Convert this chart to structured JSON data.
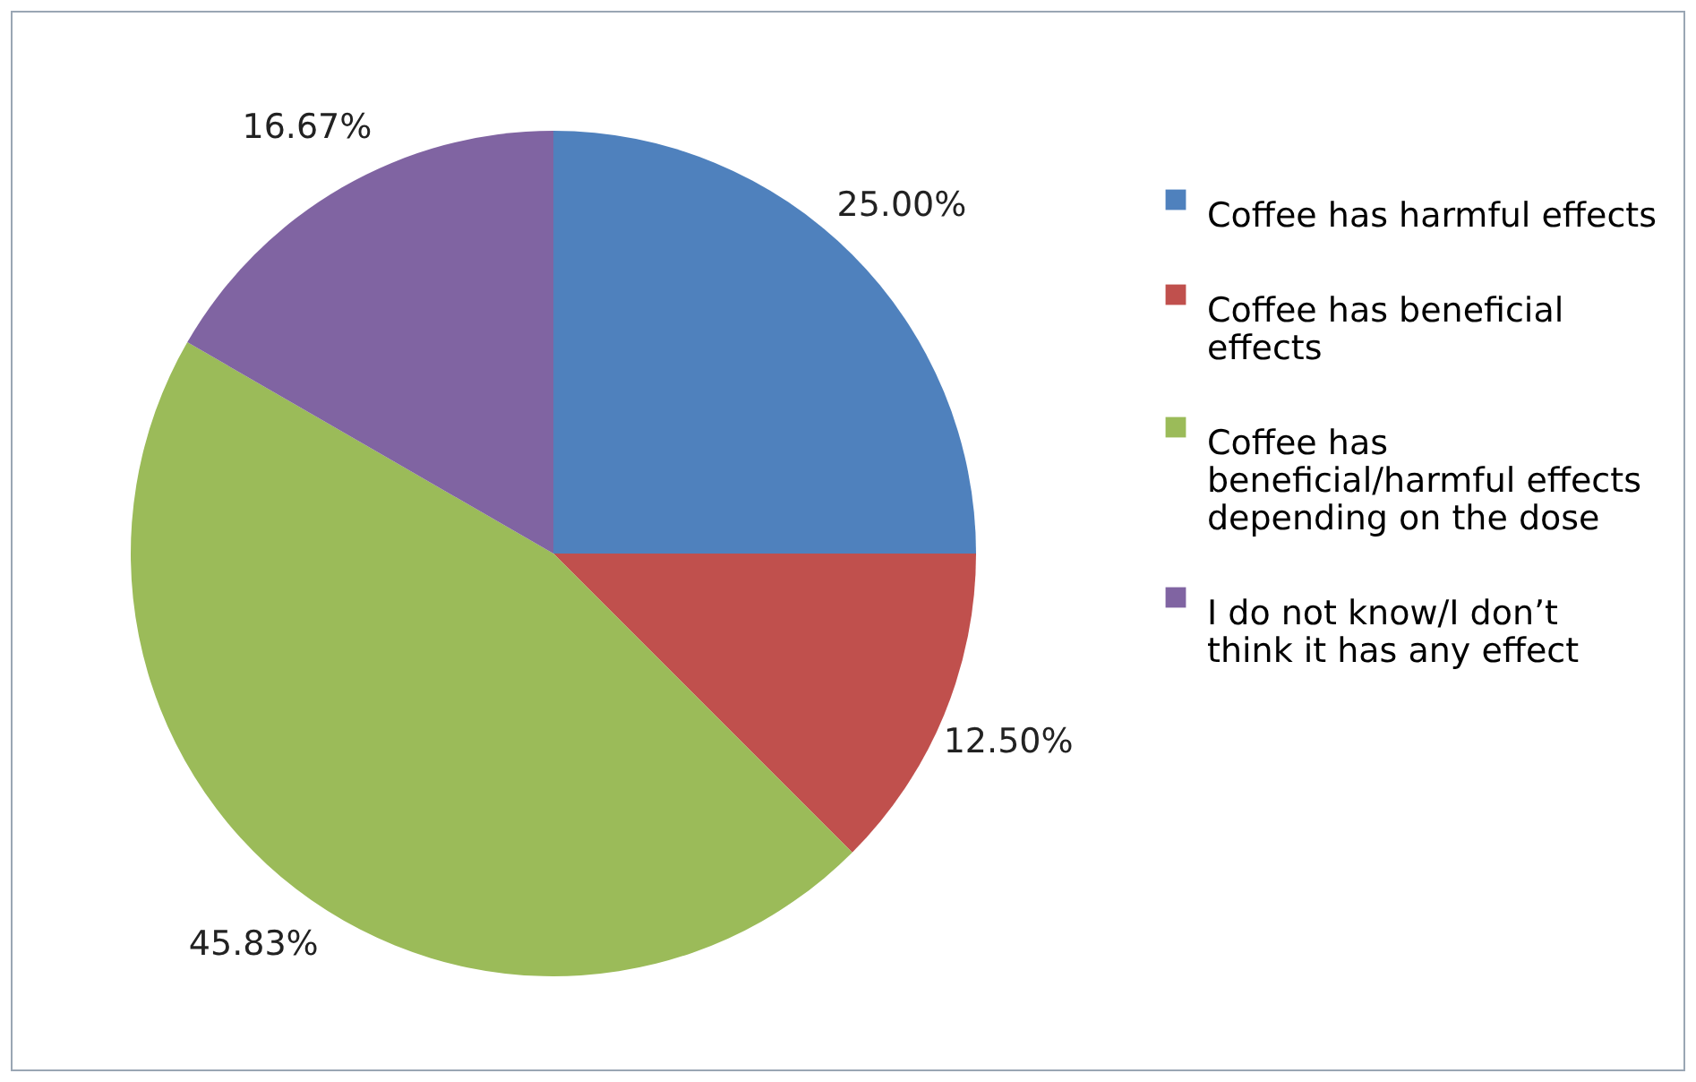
{
  "chart_data": {
    "type": "pie",
    "categories": [
      "Coffee has harmful effects",
      "Coffee has beneficial effects",
      "Coffee has beneficial/harmful effects depending on the dose",
      "I do not know/I don’t think it has any effect"
    ],
    "values": [
      25.0,
      12.5,
      45.83,
      16.67
    ],
    "value_labels": [
      "25.00%",
      "12.50%",
      "45.83%",
      "16.67%"
    ],
    "colors": [
      "#4f81bd",
      "#c0504d",
      "#9bbb59",
      "#8064a2"
    ],
    "legend": "right"
  }
}
